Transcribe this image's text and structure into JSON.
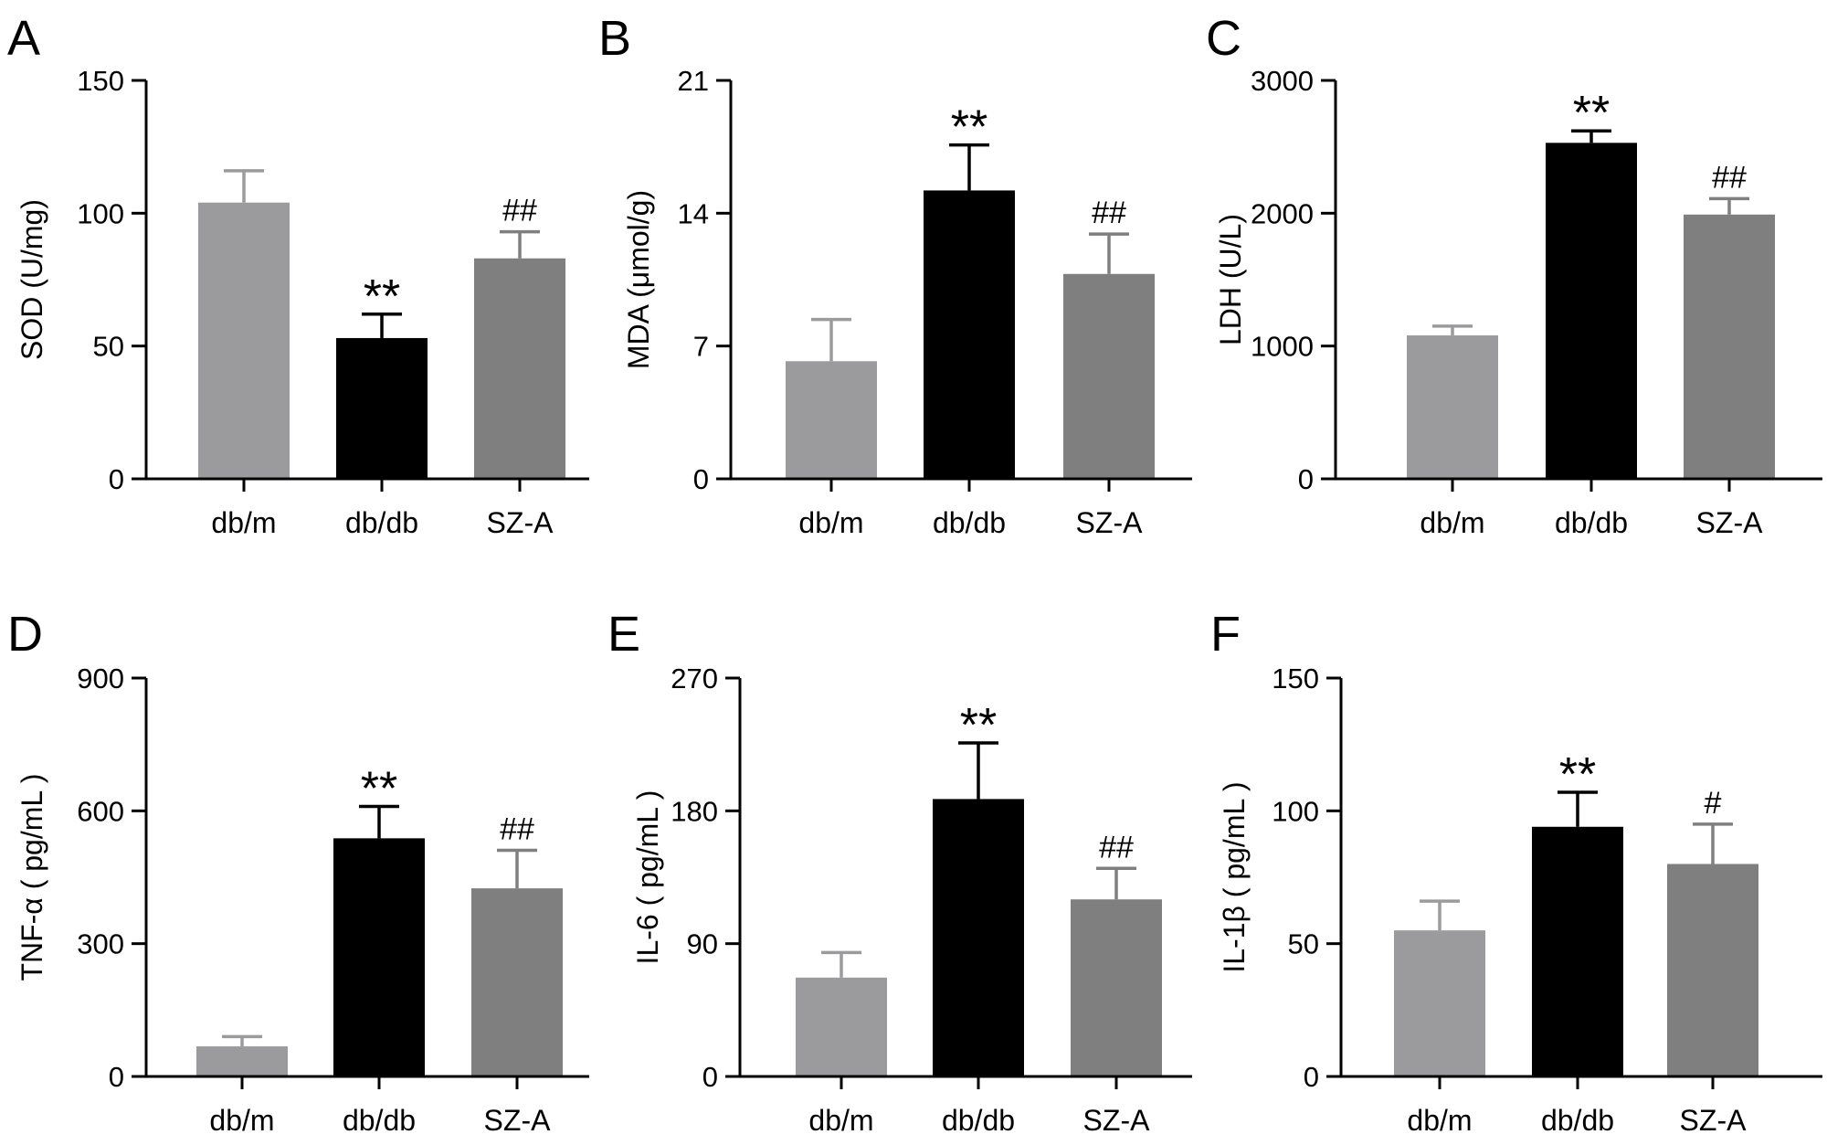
{
  "figure": {
    "colors": {
      "db_m": "#9b9b9d",
      "db_db": "#000000",
      "sz_a": "#7f7f7f",
      "axis": "#000000"
    }
  },
  "chart_data": [
    {
      "panel": "A",
      "type": "bar",
      "ylabel": "SOD (U/mg)",
      "categories": [
        "db/m",
        "db/db",
        "SZ-A"
      ],
      "values": [
        104,
        53,
        83
      ],
      "errors": [
        12,
        9,
        10
      ],
      "ylim": [
        0,
        150
      ],
      "yticks": [
        0,
        50,
        100,
        150
      ],
      "annotations": [
        "",
        "**",
        "##"
      ]
    },
    {
      "panel": "B",
      "type": "bar",
      "ylabel": "MDA (μmol/g)",
      "categories": [
        "db/m",
        "db/db",
        "SZ-A"
      ],
      "values": [
        6.2,
        15.2,
        10.8
      ],
      "errors": [
        2.2,
        2.4,
        2.1
      ],
      "ylim": [
        0,
        21
      ],
      "yticks": [
        0,
        7,
        14,
        21
      ],
      "annotations": [
        "",
        "**",
        "##"
      ]
    },
    {
      "panel": "C",
      "type": "bar",
      "ylabel": "LDH (U/L)",
      "categories": [
        "db/m",
        "db/db",
        "SZ-A"
      ],
      "values": [
        1080,
        2530,
        1990
      ],
      "errors": [
        70,
        90,
        120
      ],
      "ylim": [
        0,
        3000
      ],
      "yticks": [
        0,
        1000,
        2000,
        3000
      ],
      "annotations": [
        "",
        "**",
        "##"
      ]
    },
    {
      "panel": "D",
      "type": "bar",
      "ylabel": "TNF-α ( pg/mL )",
      "categories": [
        "db/m",
        "db/db",
        "SZ-A"
      ],
      "values": [
        68,
        538,
        425
      ],
      "errors": [
        22,
        72,
        86
      ],
      "ylim": [
        0,
        900
      ],
      "yticks": [
        0,
        300,
        600,
        900
      ],
      "annotations": [
        "",
        "**",
        "##"
      ]
    },
    {
      "panel": "E",
      "type": "bar",
      "ylabel": "IL-6 ( pg/mL )",
      "categories": [
        "db/m",
        "db/db",
        "SZ-A"
      ],
      "values": [
        67,
        188,
        120
      ],
      "errors": [
        17,
        38,
        21
      ],
      "ylim": [
        0,
        270
      ],
      "yticks": [
        0,
        90,
        180,
        270
      ],
      "annotations": [
        "",
        "**",
        "##"
      ]
    },
    {
      "panel": "F",
      "type": "bar",
      "ylabel": "IL-1β ( pg/mL )",
      "categories": [
        "db/m",
        "db/db",
        "SZ-A"
      ],
      "values": [
        55,
        94,
        80
      ],
      "errors": [
        11,
        13,
        15
      ],
      "ylim": [
        0,
        150
      ],
      "yticks": [
        0,
        50,
        100,
        150
      ],
      "annotations": [
        "",
        "**",
        "#"
      ]
    }
  ]
}
